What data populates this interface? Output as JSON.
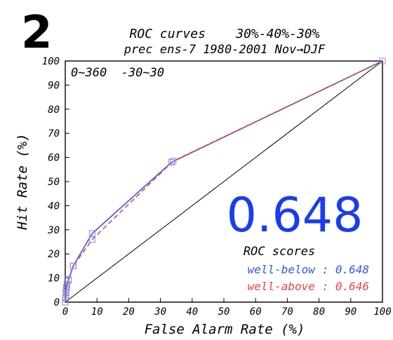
{
  "panel_label": "2",
  "chart_data": {
    "type": "line",
    "title": "ROC curves    30%-40%-30%",
    "subtitle": "prec ens-7 1980-2001 Nov→DJF",
    "region": "0~360  -30~30",
    "xlabel": "False Alarm Rate (%)",
    "ylabel": "Hit Rate (%)",
    "xlim": [
      0,
      100
    ],
    "ylim": [
      0,
      100
    ],
    "x_ticks": [
      "0",
      "10",
      "20",
      "30",
      "40",
      "50",
      "60",
      "70",
      "80",
      "90",
      "100"
    ],
    "y_ticks": [
      "0",
      "10",
      "20",
      "30",
      "40",
      "50",
      "60",
      "70",
      "80",
      "90",
      "100"
    ],
    "big_score": "0.648",
    "scores_label": "ROC scores",
    "series": [
      {
        "name": "well-below",
        "score_text": "well-below : 0.648",
        "color": "#3355ee",
        "style": "solid",
        "points": [
          [
            0,
            0
          ],
          [
            0.1,
            1.5
          ],
          [
            0.2,
            3
          ],
          [
            0.3,
            5
          ],
          [
            0.5,
            6.5
          ],
          [
            1,
            9
          ],
          [
            2.5,
            15
          ],
          [
            8.5,
            28.5
          ],
          [
            33.5,
            58
          ],
          [
            100,
            100
          ]
        ]
      },
      {
        "name": "well-above",
        "score_text": "well-above : 0.646",
        "color": "#ee4444",
        "style": "dashed",
        "points": [
          [
            0,
            0
          ],
          [
            0.1,
            2
          ],
          [
            0.2,
            4
          ],
          [
            0.3,
            6
          ],
          [
            0.5,
            7.5
          ],
          [
            1,
            9.5
          ],
          [
            2.5,
            15
          ],
          [
            8.5,
            26
          ],
          [
            34,
            58.5
          ],
          [
            100,
            100
          ]
        ]
      }
    ],
    "diagonal": true,
    "grid": false,
    "colors": {
      "big_score": "#1a3cf0",
      "axis": "#000000",
      "marker": "#8888ee"
    }
  }
}
